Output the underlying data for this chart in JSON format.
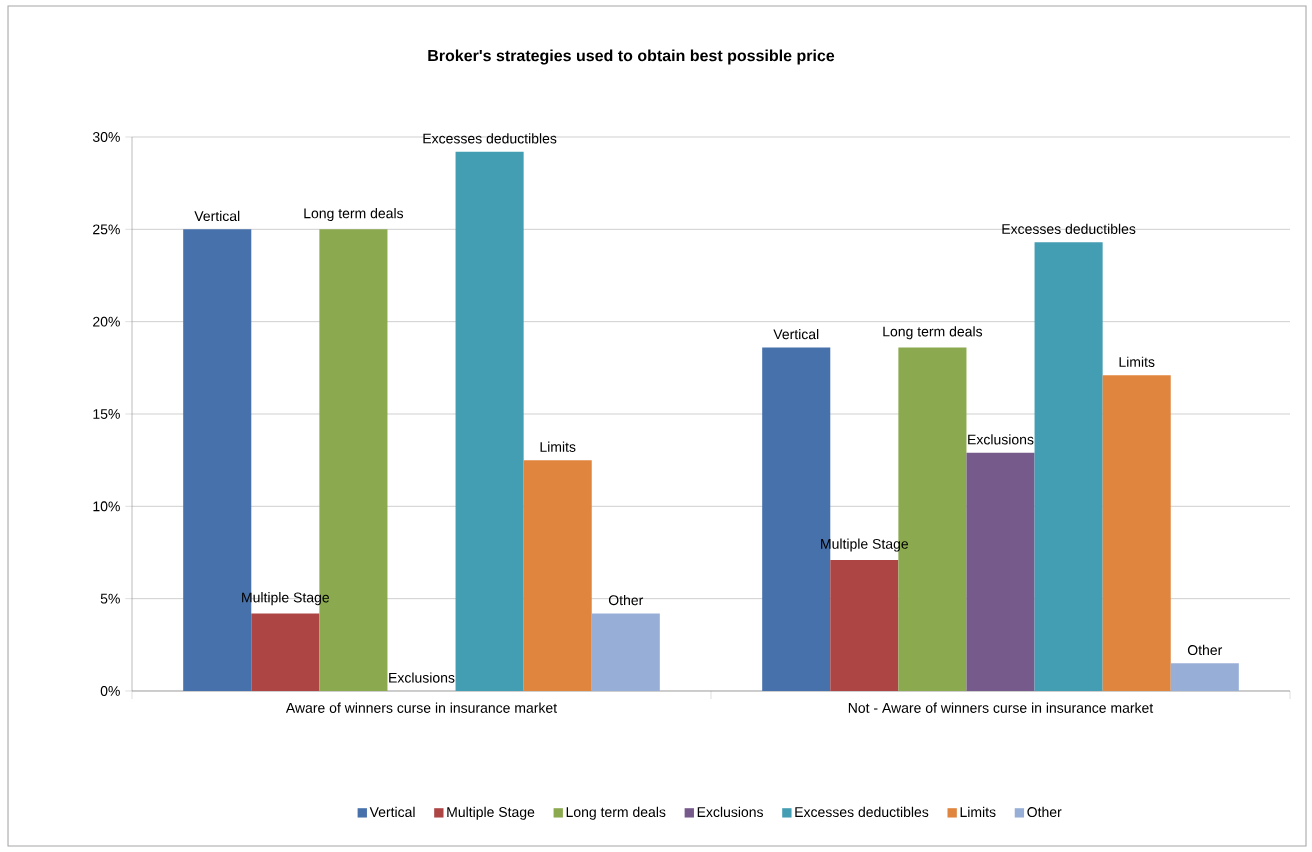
{
  "chart_data": {
    "type": "bar",
    "title": "Broker's strategies used to obtain  best possible price",
    "categories": [
      "Aware of winners curse in insurance market",
      "Not - Aware of winners curse in insurance market"
    ],
    "series": [
      {
        "name": "Vertical",
        "color": "#4771ab",
        "values": [
          25,
          18.6
        ],
        "value_labels": [
          "Vertical",
          "Vertical"
        ]
      },
      {
        "name": "Multiple Stage",
        "color": "#ae4545",
        "values": [
          4.2,
          7.1
        ],
        "value_labels": [
          "Multiple Stage",
          "Multiple Stage"
        ]
      },
      {
        "name": "Long term deals",
        "color": "#8ba94f",
        "values": [
          25,
          18.6
        ],
        "value_labels": [
          "Long term deals",
          "Long term deals"
        ]
      },
      {
        "name": "Exclusions",
        "color": "#765a8c",
        "values": [
          0,
          12.9
        ],
        "value_labels": [
          "Exclusions",
          "Exclusions"
        ]
      },
      {
        "name": "Excesses deductibles",
        "color": "#439eb3",
        "values": [
          29.2,
          24.3
        ],
        "value_labels": [
          "Excesses deductibles",
          "Excesses deductibles"
        ]
      },
      {
        "name": "Limits",
        "color": "#e0853e",
        "values": [
          12.5,
          17.1
        ],
        "value_labels": [
          "Limits",
          "Limits"
        ]
      },
      {
        "name": "Other",
        "color": "#97afd6",
        "values": [
          4.2,
          1.5
        ],
        "value_labels": [
          "Other",
          "Other"
        ]
      }
    ],
    "ylim": [
      0,
      30
    ],
    "yticks": [
      {
        "value": 0,
        "label": "0%"
      },
      {
        "value": 5,
        "label": "5%"
      },
      {
        "value": 10,
        "label": "10%"
      },
      {
        "value": 15,
        "label": "15%"
      },
      {
        "value": 20,
        "label": "20%"
      },
      {
        "value": 25,
        "label": "25%"
      },
      {
        "value": 30,
        "label": "30%"
      }
    ],
    "grid": "y",
    "legend": "bottom"
  }
}
